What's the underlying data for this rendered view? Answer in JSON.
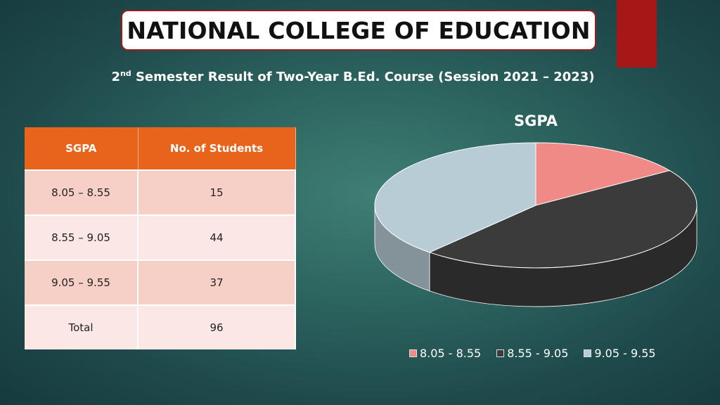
{
  "header": {
    "title": "NATIONAL COLLEGE OF EDUCATION",
    "subtitle_pre": "2",
    "subtitle_sup": "nd",
    "subtitle_post": " Semester Result of Two-Year B.Ed. Course (Session 2021 – 2023)"
  },
  "table": {
    "headers": [
      "SGPA",
      "No. of Students"
    ],
    "rows": [
      [
        "8.05 – 8.55",
        "15"
      ],
      [
        "8.55 – 9.05",
        "44"
      ],
      [
        "9.05 – 9.55",
        "37"
      ],
      [
        "Total",
        "96"
      ]
    ]
  },
  "chart_data": {
    "type": "pie",
    "title": "SGPA",
    "categories": [
      "8.05 - 8.55",
      "8.55 - 9.05",
      "9.05 - 9.55"
    ],
    "values": [
      15,
      44,
      37
    ],
    "colors": [
      "#f08a86",
      "#3b3b3b",
      "#b8ccd6"
    ],
    "legend_position": "bottom",
    "style": "3d"
  },
  "colors": {
    "accent_red": "#a81717",
    "table_header": "#e8641a"
  }
}
